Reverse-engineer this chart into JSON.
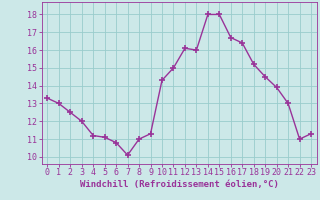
{
  "x": [
    0,
    1,
    2,
    3,
    4,
    5,
    6,
    7,
    8,
    9,
    10,
    11,
    12,
    13,
    14,
    15,
    16,
    17,
    18,
    19,
    20,
    21,
    22,
    23
  ],
  "y": [
    13.3,
    13.0,
    12.5,
    12.0,
    11.2,
    11.1,
    10.8,
    10.1,
    11.0,
    11.3,
    14.3,
    15.0,
    16.1,
    16.0,
    18.0,
    18.0,
    16.7,
    16.4,
    15.2,
    14.5,
    13.9,
    13.0,
    11.0,
    11.3
  ],
  "line_color": "#993399",
  "marker": "+",
  "markersize": 4,
  "linewidth": 1.0,
  "bg_color": "#cce8e8",
  "grid_color": "#99cccc",
  "xlabel": "Windchill (Refroidissement éolien,°C)",
  "xlabel_color": "#993399",
  "xlabel_fontsize": 6.5,
  "tick_color": "#993399",
  "tick_fontsize": 6,
  "ytick_labels": [
    "10",
    "11",
    "12",
    "13",
    "14",
    "15",
    "16",
    "17",
    "18"
  ],
  "ylim": [
    9.6,
    18.7
  ],
  "xlim": [
    -0.5,
    23.5
  ],
  "xtick_labels": [
    "0",
    "1",
    "2",
    "3",
    "4",
    "5",
    "6",
    "7",
    "8",
    "9",
    "10",
    "11",
    "12",
    "13",
    "14",
    "15",
    "16",
    "17",
    "18",
    "19",
    "20",
    "21",
    "22",
    "23"
  ]
}
